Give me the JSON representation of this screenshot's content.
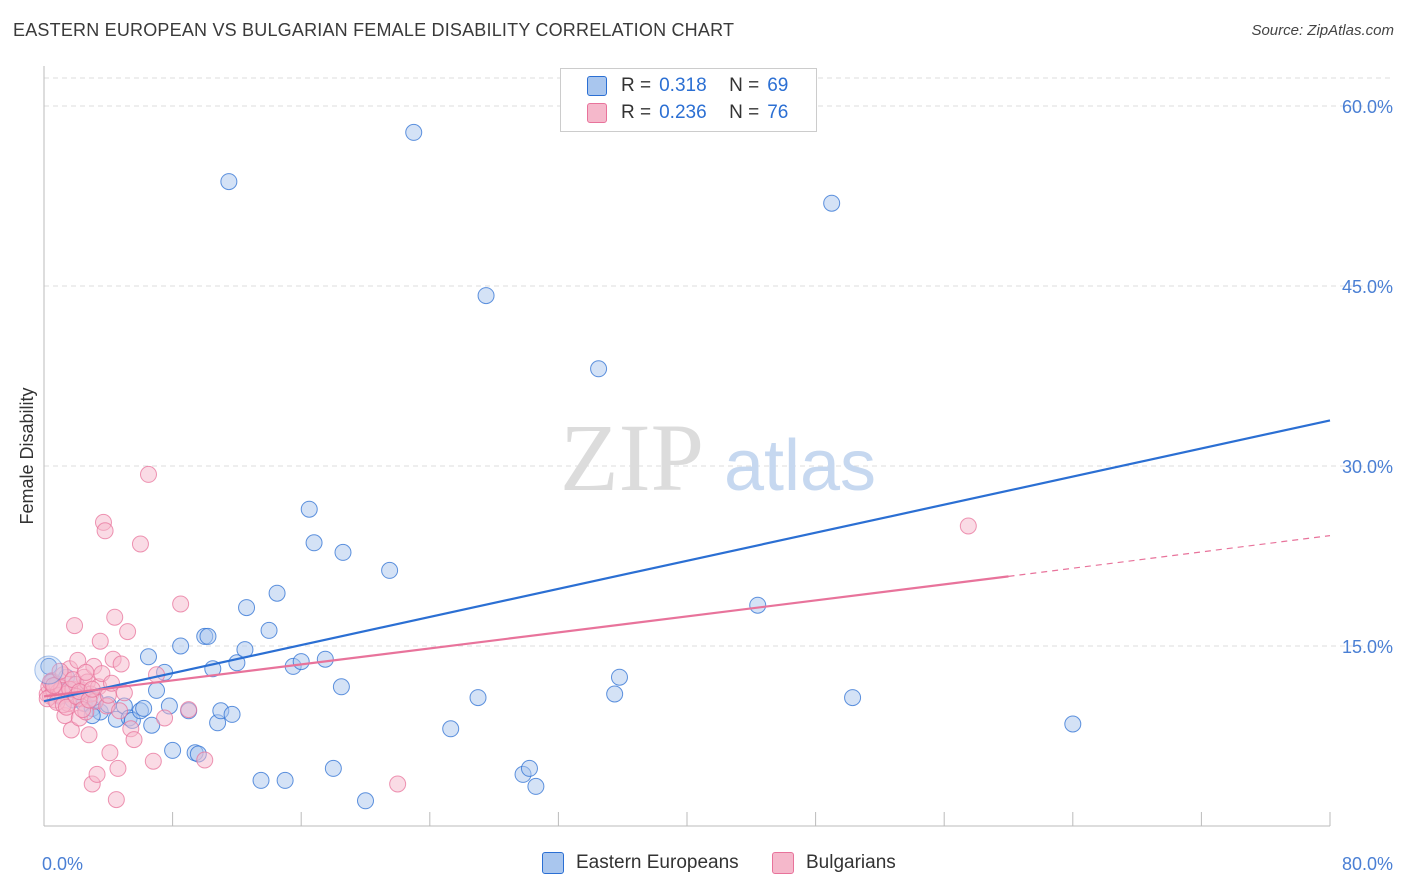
{
  "header": {
    "title": "EASTERN EUROPEAN VS BULGARIAN FEMALE DISABILITY CORRELATION CHART",
    "source": "Source: ZipAtlas.com"
  },
  "legend": {
    "rows": [
      {
        "r_label": "R =",
        "r_value": "0.318",
        "n_label": "N =",
        "n_value": "69"
      },
      {
        "r_label": "R =",
        "r_value": "0.236",
        "n_label": "N =",
        "n_value": "76"
      }
    ]
  },
  "bottom_legend": {
    "items": [
      "Eastern Europeans",
      "Bulgarians"
    ]
  },
  "watermark": {
    "zip": "ZIP",
    "atlas": "atlas"
  },
  "colors": {
    "blue": "#2b6fd3",
    "blue_fill": "#a9c6ee",
    "pink": "#e8739b",
    "pink_fill": "#f5b8cb",
    "axis_label": "#4a7fd4",
    "grid": "#dedede"
  },
  "chart_data": {
    "type": "scatter",
    "title": "EASTERN EUROPEAN VS BULGARIAN FEMALE DISABILITY CORRELATION CHART",
    "xlabel": "",
    "ylabel": "Female Disability",
    "xlim": [
      0,
      80
    ],
    "ylim": [
      0,
      63
    ],
    "x_tick_labels": [
      "0.0%",
      "80.0%"
    ],
    "y_ticks": [
      15,
      30,
      45,
      60
    ],
    "y_tick_labels": [
      "15.0%",
      "30.0%",
      "45.0%",
      "60.0%"
    ],
    "grid": true,
    "legend_position": "top-center",
    "series": [
      {
        "name": "Eastern Europeans",
        "color": "#2b6fd3",
        "r": 0.318,
        "n": 69,
        "trend": {
          "x": [
            0,
            80
          ],
          "y": [
            10.4,
            33.8
          ]
        },
        "points": [
          [
            0.3,
            13.3
          ],
          [
            0.5,
            12.0
          ],
          [
            0.7,
            11.5
          ],
          [
            1.0,
            10.8
          ],
          [
            1.2,
            11.2
          ],
          [
            1.4,
            12.4
          ],
          [
            1.8,
            10.5
          ],
          [
            2.0,
            11.8
          ],
          [
            2.5,
            10.2
          ],
          [
            3.0,
            9.8
          ],
          [
            3.2,
            10.5
          ],
          [
            3.5,
            9.5
          ],
          [
            4.0,
            10.1
          ],
          [
            4.5,
            8.9
          ],
          [
            5.0,
            10.0
          ],
          [
            5.3,
            9.0
          ],
          [
            5.5,
            8.8
          ],
          [
            6.0,
            9.6
          ],
          [
            6.2,
            9.8
          ],
          [
            6.5,
            14.1
          ],
          [
            6.7,
            8.4
          ],
          [
            7.0,
            11.3
          ],
          [
            7.5,
            12.8
          ],
          [
            7.8,
            10.0
          ],
          [
            8.0,
            6.3
          ],
          [
            8.5,
            15.0
          ],
          [
            9.0,
            9.6
          ],
          [
            9.4,
            6.1
          ],
          [
            9.6,
            6.0
          ],
          [
            10.0,
            15.8
          ],
          [
            10.2,
            15.8
          ],
          [
            10.5,
            13.1
          ],
          [
            10.8,
            8.6
          ],
          [
            11.0,
            9.6
          ],
          [
            11.5,
            53.7
          ],
          [
            11.7,
            9.3
          ],
          [
            12.0,
            13.6
          ],
          [
            12.5,
            14.7
          ],
          [
            12.6,
            18.2
          ],
          [
            13.5,
            3.8
          ],
          [
            14.0,
            16.3
          ],
          [
            14.5,
            19.4
          ],
          [
            15.0,
            3.8
          ],
          [
            15.5,
            13.3
          ],
          [
            16.0,
            13.7
          ],
          [
            16.5,
            26.4
          ],
          [
            16.8,
            23.6
          ],
          [
            17.5,
            13.9
          ],
          [
            18.0,
            4.8
          ],
          [
            18.5,
            11.6
          ],
          [
            18.6,
            22.8
          ],
          [
            20.0,
            2.1
          ],
          [
            21.5,
            21.3
          ],
          [
            23.0,
            57.8
          ],
          [
            25.3,
            8.1
          ],
          [
            27.0,
            10.7
          ],
          [
            27.5,
            44.2
          ],
          [
            29.8,
            4.3
          ],
          [
            30.2,
            4.8
          ],
          [
            30.6,
            3.3
          ],
          [
            34.5,
            38.1
          ],
          [
            35.5,
            11.0
          ],
          [
            35.8,
            12.4
          ],
          [
            44.4,
            18.4
          ],
          [
            49.0,
            51.9
          ],
          [
            50.3,
            10.7
          ],
          [
            64.0,
            8.5
          ],
          [
            34.0,
            59.0
          ],
          [
            3.0,
            9.2
          ]
        ]
      },
      {
        "name": "Bulgarians",
        "color": "#e8739b",
        "r": 0.236,
        "n": 76,
        "trend": {
          "x": [
            0,
            60
          ],
          "y": [
            10.8,
            20.8
          ]
        },
        "trend_dashed": {
          "x": [
            60,
            80
          ],
          "y": [
            20.8,
            24.2
          ]
        },
        "points": [
          [
            0.2,
            11.0
          ],
          [
            0.3,
            11.6
          ],
          [
            0.4,
            10.8
          ],
          [
            0.5,
            12.1
          ],
          [
            0.6,
            11.3
          ],
          [
            0.7,
            10.5
          ],
          [
            0.8,
            11.8
          ],
          [
            0.9,
            11.2
          ],
          [
            1.0,
            10.9
          ],
          [
            1.1,
            11.5
          ],
          [
            1.2,
            12.6
          ],
          [
            1.3,
            9.2
          ],
          [
            1.4,
            11.0
          ],
          [
            1.5,
            10.2
          ],
          [
            1.6,
            13.1
          ],
          [
            1.7,
            8.0
          ],
          [
            1.8,
            11.4
          ],
          [
            1.9,
            16.7
          ],
          [
            2.0,
            11.8
          ],
          [
            2.1,
            13.8
          ],
          [
            2.2,
            9.0
          ],
          [
            2.3,
            10.6
          ],
          [
            2.4,
            11.3
          ],
          [
            2.5,
            12.4
          ],
          [
            2.6,
            9.5
          ],
          [
            2.7,
            12.0
          ],
          [
            2.8,
            7.6
          ],
          [
            2.9,
            11.0
          ],
          [
            3.0,
            3.5
          ],
          [
            3.1,
            13.3
          ],
          [
            3.2,
            10.4
          ],
          [
            3.3,
            4.3
          ],
          [
            3.4,
            11.6
          ],
          [
            3.5,
            15.4
          ],
          [
            3.6,
            12.7
          ],
          [
            3.7,
            25.3
          ],
          [
            3.8,
            24.6
          ],
          [
            3.9,
            10.0
          ],
          [
            4.0,
            10.9
          ],
          [
            4.1,
            6.1
          ],
          [
            4.2,
            11.9
          ],
          [
            4.3,
            13.9
          ],
          [
            4.4,
            17.4
          ],
          [
            4.5,
            2.2
          ],
          [
            4.6,
            4.8
          ],
          [
            4.7,
            9.6
          ],
          [
            4.8,
            13.5
          ],
          [
            5.0,
            11.1
          ],
          [
            5.2,
            16.2
          ],
          [
            5.4,
            8.1
          ],
          [
            5.6,
            7.2
          ],
          [
            6.0,
            23.5
          ],
          [
            6.5,
            29.3
          ],
          [
            6.8,
            5.4
          ],
          [
            7.0,
            12.6
          ],
          [
            7.5,
            9.0
          ],
          [
            8.5,
            18.5
          ],
          [
            9.0,
            9.7
          ],
          [
            10.0,
            5.5
          ],
          [
            22.0,
            3.5
          ],
          [
            57.5,
            25.0
          ],
          [
            0.2,
            10.6
          ],
          [
            0.4,
            12.0
          ],
          [
            0.6,
            11.7
          ],
          [
            0.8,
            10.3
          ],
          [
            1.0,
            12.9
          ],
          [
            1.2,
            10.1
          ],
          [
            1.4,
            9.9
          ],
          [
            1.6,
            11.4
          ],
          [
            1.8,
            12.2
          ],
          [
            2.0,
            10.8
          ],
          [
            2.2,
            11.2
          ],
          [
            2.4,
            9.7
          ],
          [
            2.6,
            12.8
          ],
          [
            2.8,
            10.5
          ],
          [
            3.0,
            11.4
          ]
        ]
      }
    ]
  }
}
